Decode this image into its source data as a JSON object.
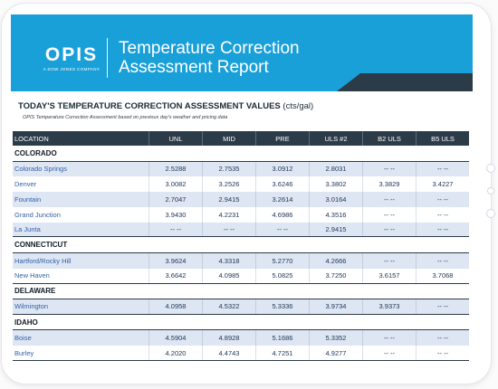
{
  "banner": {
    "logo_word": "OPIS",
    "logo_sub": "A DOW JONES COMPANY",
    "title_line1": "Temperature Correction",
    "title_line2": "Assessment Report"
  },
  "section": {
    "title_strong": "TODAY'S TEMPERATURE CORRECTION ASSESSMENT VALUES",
    "title_units": " (cts/gal)",
    "subtitle": "OPIS Temperature Correction Assessment based on previous day's weather and pricing data"
  },
  "table": {
    "columns": [
      "LOCATION",
      "UNL",
      "MID",
      "PRE",
      "ULS #2",
      "B2 ULS",
      "B5 ULS"
    ],
    "groups": [
      {
        "state": "COLORADO",
        "rows": [
          [
            "Colorado Springs",
            "2.5288",
            "2.7535",
            "3.0912",
            "2.8031",
            "-- --",
            "-- --"
          ],
          [
            "Denver",
            "3.0082",
            "3.2526",
            "3.6246",
            "3.3802",
            "3.3829",
            "3.4227"
          ],
          [
            "Fountain",
            "2.7047",
            "2.9415",
            "3.2614",
            "3.0164",
            "-- --",
            "-- --"
          ],
          [
            "Grand Junction",
            "3.9430",
            "4.2231",
            "4.6986",
            "4.3516",
            "-- --",
            "-- --"
          ],
          [
            "La Junta",
            "-- --",
            "-- --",
            "-- --",
            "2.9415",
            "-- --",
            "-- --"
          ]
        ]
      },
      {
        "state": "CONNECTICUT",
        "rows": [
          [
            "Hartford/Rocky Hill",
            "3.9624",
            "4.3318",
            "5.2770",
            "4.2666",
            "-- --",
            "-- --"
          ],
          [
            "New Haven",
            "3.6642",
            "4.0985",
            "5.0825",
            "3.7250",
            "3.6157",
            "3.7068"
          ]
        ]
      },
      {
        "state": "DELAWARE",
        "rows": [
          [
            "Wilmington",
            "4.0958",
            "4.5322",
            "5.3336",
            "3.9734",
            "3.9373",
            "-- --"
          ]
        ]
      },
      {
        "state": "IDAHO",
        "rows": [
          [
            "Boise",
            "4.5904",
            "4.8928",
            "5.1686",
            "5.3352",
            "-- --",
            "-- --"
          ],
          [
            "Burley",
            "4.2020",
            "4.4743",
            "4.7251",
            "4.9277",
            "-- --",
            "-- --"
          ]
        ]
      }
    ]
  },
  "colors": {
    "banner_blue": "#1aa0d8",
    "header_dark": "#2c3b48",
    "row_stripe": "#dde6f2",
    "link_blue": "#3361a8"
  }
}
